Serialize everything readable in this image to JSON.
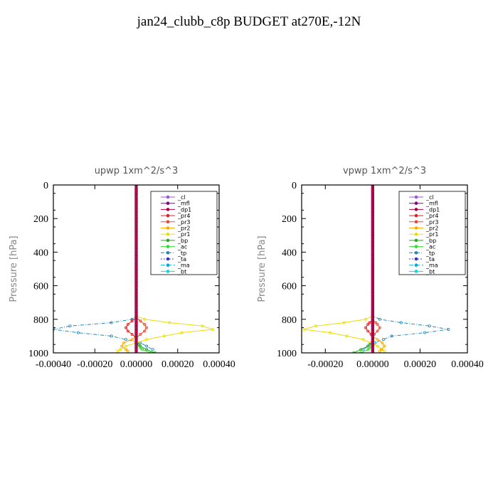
{
  "title": "jan24_clubb_c8p  BUDGET at270E,-12N",
  "colors": {
    "_cl": "#9955dd",
    "_mfl": "#880088",
    "_dp1": "#aa0044",
    "_pr4": "#dd2222",
    "_pr3": "#ee4433",
    "_pr2": "#ffaa00",
    "_pr1": "#eedd00",
    "_bp": "#22aa22",
    "_ac": "#33dd33",
    "_tp": "#2288bb",
    "_ta": "#3333cc",
    "_ma": "#00aadd",
    "_bt": "#00dddd"
  },
  "chart_data": [
    {
      "type": "line",
      "title": "upwp   1xm^2/s^3",
      "ylabel": "Pressure [hPa]",
      "xlim": [
        -0.0004,
        0.0004
      ],
      "ylim": [
        1000,
        0
      ],
      "xticks": [
        "-0.00040",
        "-0.00020",
        "0.00000",
        "0.00020",
        "0.00040"
      ],
      "xtick_values": [
        -0.0004,
        -0.0002,
        0,
        0.0002,
        0.0004
      ],
      "yticks": [
        0,
        200,
        400,
        600,
        800,
        1000
      ],
      "legend": [
        "_cl",
        "_mfl",
        "_dp1",
        "_pr4",
        "_pr3",
        "_pr2",
        "_pr1",
        "_bp",
        "_ac",
        "_tp",
        "_ta",
        "_ma",
        "_bt"
      ],
      "legend_position": "top-right",
      "series": [
        {
          "name": "_tp",
          "x": [
            0,
            0,
            -2e-05,
            -0.00012,
            -0.00032,
            -0.0004,
            -0.00028,
            -0.00012,
            2e-05,
            5e-05,
            8e-05
          ],
          "y": [
            0,
            780,
            800,
            820,
            840,
            860,
            880,
            900,
            940,
            960,
            980
          ]
        },
        {
          "name": "_pr1",
          "x": [
            0,
            0,
            4e-05,
            0.00016,
            0.00032,
            0.00037,
            0.00022,
            5e-05,
            -5e-05,
            -9e-05
          ],
          "y": [
            0,
            780,
            800,
            820,
            840,
            860,
            880,
            920,
            960,
            990
          ]
        },
        {
          "name": "_pr2",
          "x": [
            0,
            0,
            -2e-05,
            -6e-05,
            -7e-05,
            -4e-05
          ],
          "y": [
            0,
            900,
            920,
            940,
            960,
            990
          ]
        },
        {
          "name": "_pr4",
          "x": [
            0,
            0,
            -2e-05,
            -4e-05,
            -5e-05,
            -4e-05,
            -2e-05,
            0
          ],
          "y": [
            0,
            790,
            810,
            830,
            850,
            870,
            890,
            910
          ]
        },
        {
          "name": "_pr3",
          "x": [
            0,
            0,
            2e-05,
            4e-05,
            5e-05,
            4e-05,
            2e-05,
            0
          ],
          "y": [
            0,
            790,
            810,
            830,
            850,
            870,
            890,
            910
          ]
        },
        {
          "name": "_bp",
          "x": [
            0,
            0,
            2e-05,
            5e-05,
            9e-05
          ],
          "y": [
            0,
            930,
            960,
            980,
            1000
          ]
        },
        {
          "name": "_ac",
          "x": [
            0,
            0,
            3e-05,
            7e-05
          ],
          "y": [
            0,
            950,
            980,
            1000
          ]
        },
        {
          "name": "_cl",
          "x": [
            0,
            0
          ],
          "y": [
            0,
            1000
          ]
        },
        {
          "name": "_mfl",
          "x": [
            0,
            0
          ],
          "y": [
            0,
            1000
          ]
        },
        {
          "name": "_dp1",
          "x": [
            0,
            0
          ],
          "y": [
            0,
            1000
          ]
        }
      ]
    },
    {
      "type": "line",
      "title": "vpwp   1xm^2/s^3",
      "ylabel": "Pressure [hPa]",
      "xlim": [
        -0.0003,
        0.0004
      ],
      "ylim": [
        1000,
        0
      ],
      "xticks": [
        "-0.00020",
        "0.00000",
        "0.00020",
        "0.00040"
      ],
      "xtick_values": [
        -0.0002,
        0,
        0.0002,
        0.0004
      ],
      "yticks": [
        0,
        200,
        400,
        600,
        800,
        1000
      ],
      "legend": [
        "_cl",
        "_mfl",
        "_dp1",
        "_pr4",
        "_pr3",
        "_pr2",
        "_pr1",
        "_bp",
        "_ac",
        "_tp",
        "_ta",
        "_ma",
        "_bt"
      ],
      "legend_position": "top-right",
      "series": [
        {
          "name": "_tp",
          "x": [
            0,
            0,
            3e-05,
            0.00012,
            0.00024,
            0.00032,
            0.00022,
            8e-05,
            1e-05,
            -2e-05,
            -4e-05
          ],
          "y": [
            0,
            780,
            800,
            820,
            840,
            860,
            880,
            900,
            940,
            960,
            980
          ]
        },
        {
          "name": "_pr1",
          "x": [
            0,
            0,
            -3e-05,
            -0.00012,
            -0.00024,
            -0.00029,
            -0.00018,
            -4e-05,
            2e-05,
            5e-05
          ],
          "y": [
            0,
            780,
            800,
            820,
            840,
            860,
            880,
            920,
            960,
            990
          ]
        },
        {
          "name": "_pr2",
          "x": [
            0,
            0,
            2e-05,
            4e-05,
            5e-05,
            3e-05
          ],
          "y": [
            0,
            900,
            920,
            940,
            960,
            990
          ]
        },
        {
          "name": "_pr4",
          "x": [
            0,
            0,
            -2e-05,
            -3e-05,
            -2e-05,
            0
          ],
          "y": [
            0,
            800,
            830,
            850,
            870,
            900
          ]
        },
        {
          "name": "_pr3",
          "x": [
            0,
            0,
            2e-05,
            3e-05,
            2e-05,
            0
          ],
          "y": [
            0,
            800,
            830,
            850,
            870,
            900
          ]
        },
        {
          "name": "_bp",
          "x": [
            0,
            0,
            -2e-05,
            -5e-05,
            -8e-05
          ],
          "y": [
            0,
            930,
            960,
            980,
            1000
          ]
        },
        {
          "name": "_ac",
          "x": [
            0,
            0,
            -2e-05,
            -5e-05
          ],
          "y": [
            0,
            950,
            980,
            1000
          ]
        },
        {
          "name": "_cl",
          "x": [
            0,
            0
          ],
          "y": [
            0,
            1000
          ]
        },
        {
          "name": "_mfl",
          "x": [
            0,
            0
          ],
          "y": [
            0,
            1000
          ]
        },
        {
          "name": "_dp1",
          "x": [
            0,
            0
          ],
          "y": [
            0,
            1000
          ]
        }
      ]
    }
  ]
}
